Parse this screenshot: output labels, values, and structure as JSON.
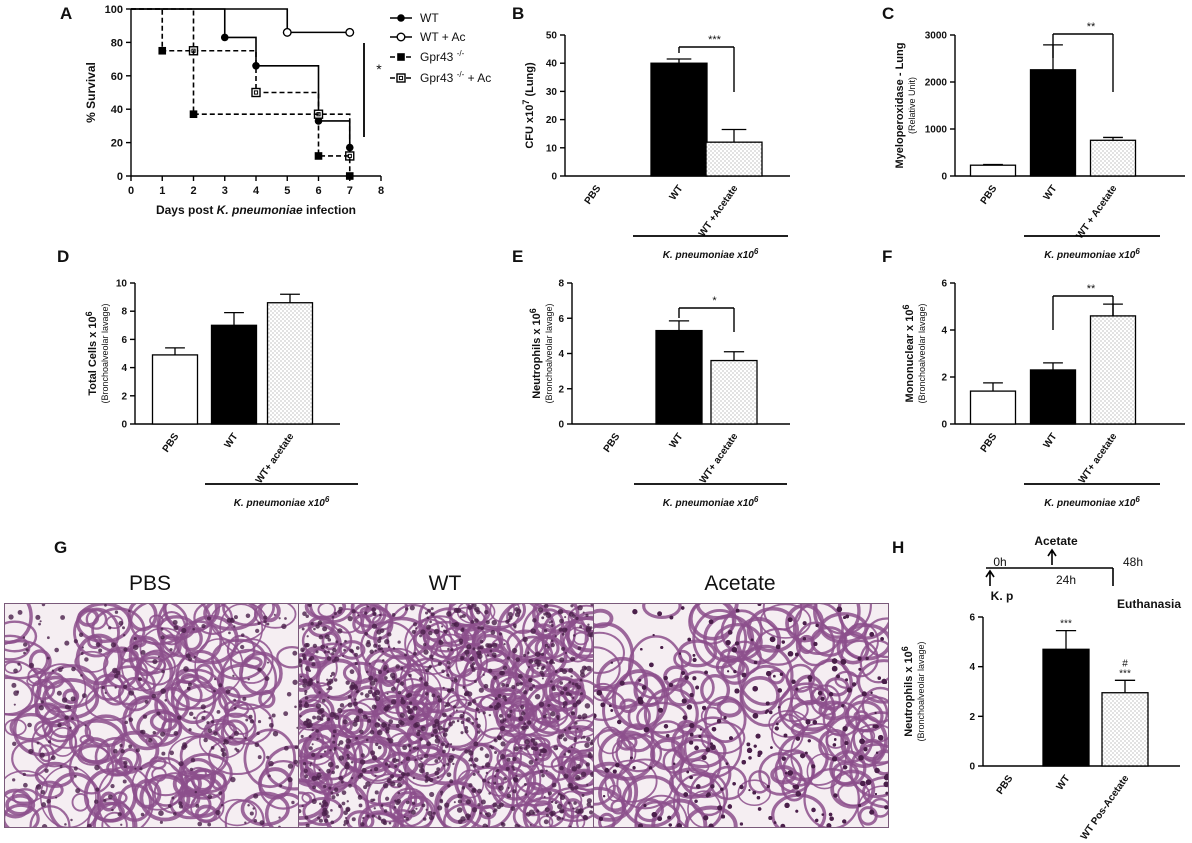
{
  "colors": {
    "black": "#000000",
    "white": "#ffffff",
    "stipple": "#d8d8d8",
    "tissue_dark": "#4a1f4a",
    "tissue_mid": "#8c4f8c",
    "tissue_light": "#f5eef2"
  },
  "panels": {
    "A": {
      "letter": "A",
      "chart_data": {
        "type": "line",
        "xlabel_prefix": "Days post ",
        "xlabel_italic": "K. pneumoniae",
        "xlabel_suffix": " infection",
        "ylabel": "% Survival",
        "xticks": [
          "0",
          "1",
          "2",
          "3",
          "4",
          "5",
          "6",
          "7",
          "8"
        ],
        "yticks": [
          "0",
          "20",
          "40",
          "60",
          "80",
          "100"
        ],
        "xlim": [
          0,
          8
        ],
        "ylim": [
          0,
          100
        ],
        "series": [
          {
            "name": "WT",
            "marker": "filled-circle",
            "dashed": false,
            "steps": [
              [
                0,
                100
              ],
              [
                3,
                100
              ],
              [
                3,
                83
              ],
              [
                4,
                83
              ],
              [
                4,
                66
              ],
              [
                6,
                66
              ],
              [
                6,
                33
              ],
              [
                7,
                33
              ],
              [
                7,
                17
              ]
            ],
            "markers": [
              [
                3,
                83
              ],
              [
                4,
                66
              ],
              [
                6,
                33
              ],
              [
                7,
                17
              ]
            ]
          },
          {
            "name": "WT + Ac",
            "marker": "open-circle",
            "dashed": false,
            "steps": [
              [
                0,
                100
              ],
              [
                5,
                100
              ],
              [
                5,
                86
              ],
              [
                7,
                86
              ]
            ],
            "markers": [
              [
                5,
                86
              ],
              [
                7,
                86
              ]
            ]
          },
          {
            "name": "Gpr43 -/-",
            "marker": "filled-square",
            "dashed": true,
            "steps": [
              [
                0,
                100
              ],
              [
                1,
                100
              ],
              [
                1,
                75
              ],
              [
                2,
                75
              ],
              [
                2,
                37
              ],
              [
                6,
                37
              ],
              [
                6,
                12
              ],
              [
                7,
                12
              ],
              [
                7,
                0
              ]
            ],
            "markers": [
              [
                1,
                75
              ],
              [
                2,
                37
              ],
              [
                6,
                12
              ],
              [
                7,
                0
              ]
            ]
          },
          {
            "name": "Gpr43 -/- + Ac",
            "marker": "open-square",
            "dashed": true,
            "steps": [
              [
                0,
                100
              ],
              [
                2,
                100
              ],
              [
                2,
                75
              ],
              [
                4,
                75
              ],
              [
                4,
                50
              ],
              [
                6,
                50
              ],
              [
                6,
                37
              ],
              [
                7,
                37
              ],
              [
                7,
                12
              ]
            ],
            "markers": [
              [
                2,
                75
              ],
              [
                4,
                50
              ],
              [
                6,
                37
              ],
              [
                7,
                12
              ]
            ]
          }
        ],
        "significance": "*"
      }
    },
    "B": {
      "letter": "B",
      "chart_data": {
        "type": "bar",
        "ylabel": "CFU x10^7 (Lung)",
        "yticks": [
          "0",
          "10",
          "20",
          "30",
          "40",
          "50"
        ],
        "ylim": [
          0,
          50
        ],
        "categories": [
          "PBS",
          "WT",
          "WT +Acetate"
        ],
        "values": [
          0,
          40,
          12
        ],
        "errors": [
          0,
          1.5,
          4.5
        ],
        "fills": [
          "white",
          "black",
          "stipple"
        ],
        "significance": {
          "label": "***",
          "from": 1,
          "to": 2
        },
        "group_label": "K. pneumoniae x10^6"
      }
    },
    "C": {
      "letter": "C",
      "chart_data": {
        "type": "bar",
        "ylabel": "Myeloperoxidase - Lung",
        "ylabel2": "(Relative Unit)",
        "yticks": [
          "0",
          "1000",
          "2000",
          "3000"
        ],
        "ylim": [
          0,
          3000
        ],
        "categories": [
          "PBS",
          "WT",
          "WT + Acetate"
        ],
        "values": [
          230,
          2260,
          760
        ],
        "errors": [
          15,
          530,
          60
        ],
        "fills": [
          "white",
          "black",
          "stipple"
        ],
        "significance": {
          "label": "**",
          "from": 1,
          "to": 2
        },
        "group_label": "K. pneumoniae x10^6"
      }
    },
    "D": {
      "letter": "D",
      "chart_data": {
        "type": "bar",
        "ylabel": "Total Cells x 10^6",
        "ylabel2": "(Bronchoalveolar lavage)",
        "yticks": [
          "0",
          "2",
          "4",
          "6",
          "8",
          "10"
        ],
        "ylim": [
          0,
          10
        ],
        "categories": [
          "PBS",
          "WT",
          "WT+ acetate"
        ],
        "values": [
          4.9,
          7.0,
          8.6
        ],
        "errors": [
          0.5,
          0.9,
          0.6
        ],
        "fills": [
          "white",
          "black",
          "stipple"
        ],
        "group_label": "K. pneumoniae x10^6"
      }
    },
    "E": {
      "letter": "E",
      "chart_data": {
        "type": "bar",
        "ylabel": "Neutrophils x 10^6",
        "ylabel2": "(Bronchoalveolar lavage)",
        "yticks": [
          "0",
          "2",
          "4",
          "6",
          "8"
        ],
        "ylim": [
          0,
          8
        ],
        "categories": [
          "PBS",
          "WT",
          "WT+ acetate"
        ],
        "values": [
          0,
          5.3,
          3.6
        ],
        "errors": [
          0,
          0.55,
          0.5
        ],
        "fills": [
          "white",
          "black",
          "stipple"
        ],
        "significance": {
          "label": "*",
          "from": 1,
          "to": 2
        },
        "group_label": "K. pneumoniae x10^6"
      }
    },
    "F": {
      "letter": "F",
      "chart_data": {
        "type": "bar",
        "ylabel": "Mononuclear x 10^6",
        "ylabel2": "(Bronchoalveolar lavage)",
        "yticks": [
          "0",
          "2",
          "4",
          "6"
        ],
        "ylim": [
          0,
          6
        ],
        "categories": [
          "PBS",
          "WT",
          "WT+ acetate"
        ],
        "values": [
          1.4,
          2.3,
          4.6
        ],
        "errors": [
          0.35,
          0.3,
          0.5
        ],
        "fills": [
          "white",
          "black",
          "stipple"
        ],
        "significance": {
          "label": "**",
          "from": 1,
          "to": 2
        },
        "group_label": "K. pneumoniae x10^6"
      }
    },
    "G": {
      "letter": "G",
      "images": [
        {
          "title": "PBS"
        },
        {
          "title": "WT"
        },
        {
          "title": "Acetate"
        }
      ]
    },
    "H": {
      "letter": "H",
      "timeline": {
        "acetate": "Acetate",
        "t0": "0h",
        "t24": "24h",
        "t48": "48h",
        "kp": "K. p",
        "euthanasia": "Euthanasia"
      },
      "chart_data": {
        "type": "bar",
        "ylabel": "Neutrophils x 10^6",
        "ylabel2": "(Bronchoalveolar lavage)",
        "yticks": [
          "0",
          "2",
          "4",
          "6"
        ],
        "ylim": [
          0,
          6
        ],
        "categories": [
          "PBS",
          "WT",
          "WT Pos-Acetate"
        ],
        "values": [
          0,
          4.7,
          2.95
        ],
        "errors": [
          0,
          0.75,
          0.5
        ],
        "fills": [
          "white",
          "black",
          "stipple"
        ],
        "bar_marks": [
          "",
          "***",
          "#\n***"
        ]
      }
    }
  }
}
